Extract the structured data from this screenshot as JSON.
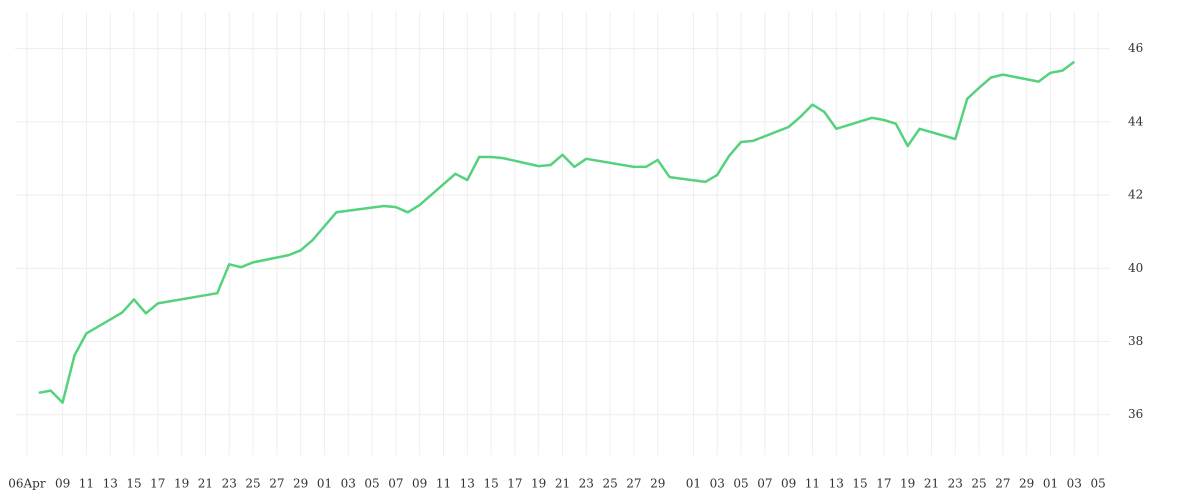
{
  "chart_data": {
    "type": "line",
    "x": [
      "04-07",
      "04-08",
      "04-09",
      "04-10",
      "04-11",
      "04-14",
      "04-15",
      "04-16",
      "04-17",
      "04-22",
      "04-23",
      "04-24",
      "04-25",
      "04-28",
      "04-29",
      "04-30",
      "05-02",
      "05-06",
      "05-07",
      "05-08",
      "05-09",
      "05-12",
      "05-13",
      "05-14",
      "05-15",
      "05-16",
      "05-19",
      "05-20",
      "05-21",
      "05-22",
      "05-23",
      "05-27",
      "05-28",
      "05-29",
      "05-30",
      "06-02",
      "06-03",
      "06-04",
      "06-05",
      "06-06",
      "06-09",
      "06-10",
      "06-11",
      "06-12",
      "06-13",
      "06-16",
      "06-17",
      "06-18",
      "06-19",
      "06-20",
      "06-23",
      "06-24",
      "06-25",
      "06-26",
      "06-27",
      "06-30",
      "07-01",
      "07-02",
      "07-03"
    ],
    "series": [
      {
        "color": "#55d27e",
        "values": [
          36.6,
          36.66,
          36.33,
          37.62,
          38.22,
          38.79,
          39.15,
          38.77,
          39.04,
          39.32,
          40.11,
          40.03,
          40.16,
          40.36,
          40.49,
          40.77,
          41.53,
          41.7,
          41.67,
          41.53,
          41.73,
          42.58,
          42.41,
          43.04,
          43.04,
          43.01,
          42.79,
          42.82,
          43.1,
          42.77,
          42.99,
          42.77,
          42.77,
          42.96,
          42.49,
          42.36,
          42.55,
          43.07,
          43.45,
          43.48,
          43.86,
          44.14,
          44.47,
          44.27,
          43.81,
          44.11,
          44.05,
          43.95,
          43.34,
          43.81,
          43.53,
          44.63,
          44.93,
          45.21,
          45.29,
          45.1,
          45.34,
          45.4,
          45.64
        ]
      }
    ],
    "xlim": [
      "04-05",
      "07-06"
    ],
    "xticks": [
      {
        "value": "04-06",
        "label": "06Apr"
      },
      {
        "value": "04-09",
        "label": "09"
      },
      {
        "value": "04-11",
        "label": "11"
      },
      {
        "value": "04-13",
        "label": "13"
      },
      {
        "value": "04-15",
        "label": "15"
      },
      {
        "value": "04-17",
        "label": "17"
      },
      {
        "value": "04-19",
        "label": "19"
      },
      {
        "value": "04-21",
        "label": "21"
      },
      {
        "value": "04-23",
        "label": "23"
      },
      {
        "value": "04-25",
        "label": "25"
      },
      {
        "value": "04-27",
        "label": "27"
      },
      {
        "value": "04-29",
        "label": "29"
      },
      {
        "value": "05-01",
        "label": "01"
      },
      {
        "value": "05-03",
        "label": "03"
      },
      {
        "value": "05-05",
        "label": "05"
      },
      {
        "value": "05-07",
        "label": "07"
      },
      {
        "value": "05-09",
        "label": "09"
      },
      {
        "value": "05-11",
        "label": "11"
      },
      {
        "value": "05-13",
        "label": "13"
      },
      {
        "value": "05-15",
        "label": "15"
      },
      {
        "value": "05-17",
        "label": "17"
      },
      {
        "value": "05-19",
        "label": "19"
      },
      {
        "value": "05-21",
        "label": "21"
      },
      {
        "value": "05-23",
        "label": "23"
      },
      {
        "value": "05-25",
        "label": "25"
      },
      {
        "value": "05-27",
        "label": "27"
      },
      {
        "value": "05-29",
        "label": "29"
      },
      {
        "value": "06-01",
        "label": "01"
      },
      {
        "value": "06-03",
        "label": "03"
      },
      {
        "value": "06-05",
        "label": "05"
      },
      {
        "value": "06-07",
        "label": "07"
      },
      {
        "value": "06-09",
        "label": "09"
      },
      {
        "value": "06-11",
        "label": "11"
      },
      {
        "value": "06-13",
        "label": "13"
      },
      {
        "value": "06-15",
        "label": "15"
      },
      {
        "value": "06-17",
        "label": "17"
      },
      {
        "value": "06-19",
        "label": "19"
      },
      {
        "value": "06-21",
        "label": "21"
      },
      {
        "value": "06-23",
        "label": "23"
      },
      {
        "value": "06-25",
        "label": "25"
      },
      {
        "value": "06-27",
        "label": "27"
      },
      {
        "value": "06-29",
        "label": "29"
      },
      {
        "value": "07-01",
        "label": "01"
      },
      {
        "value": "07-03",
        "label": "03"
      },
      {
        "value": "07-05",
        "label": "05"
      }
    ],
    "ylim": [
      34.9,
      47
    ],
    "yticks": [
      36,
      38,
      40,
      42,
      44,
      46
    ],
    "grid": true
  }
}
